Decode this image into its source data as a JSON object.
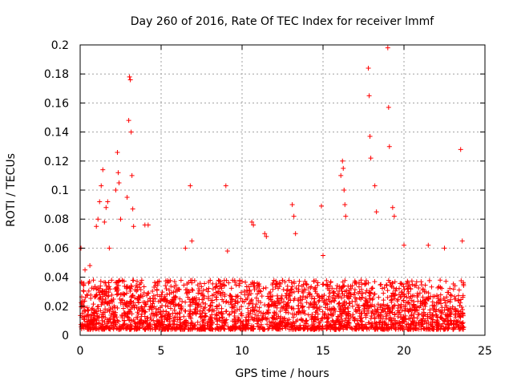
{
  "chart_data": {
    "type": "scatter",
    "title": "Day 260 of 2016, Rate Of TEC Index for receiver lmmf",
    "xlabel": "GPS time / hours",
    "ylabel": "ROTI / TECUs",
    "xlim": [
      0,
      25
    ],
    "ylim": [
      0,
      0.2
    ],
    "xticks": [
      "0",
      "5",
      "10",
      "15",
      "20",
      "25"
    ],
    "yticks": [
      "0",
      "0.02",
      "0.04",
      "0.06",
      "0.08",
      "0.1",
      "0.12",
      "0.14",
      "0.16",
      "0.18",
      "0.2"
    ],
    "grid": true,
    "marker": "+",
    "color": "#ff0000",
    "series": [
      {
        "name": "ROTI",
        "note": "dense band of points between ~0.005 and ~0.04 TECU across 0-23.7 h; notable outliers listed",
        "points": [
          [
            0.05,
            0.06
          ],
          [
            0.3,
            0.045
          ],
          [
            0.6,
            0.048
          ],
          [
            1.0,
            0.075
          ],
          [
            1.1,
            0.08
          ],
          [
            1.2,
            0.092
          ],
          [
            1.3,
            0.103
          ],
          [
            1.4,
            0.114
          ],
          [
            1.5,
            0.078
          ],
          [
            1.6,
            0.088
          ],
          [
            1.7,
            0.092
          ],
          [
            1.8,
            0.06
          ],
          [
            2.2,
            0.1
          ],
          [
            2.3,
            0.126
          ],
          [
            2.35,
            0.112
          ],
          [
            2.4,
            0.105
          ],
          [
            2.5,
            0.08
          ],
          [
            2.9,
            0.095
          ],
          [
            3.0,
            0.148
          ],
          [
            3.05,
            0.178
          ],
          [
            3.1,
            0.176
          ],
          [
            3.15,
            0.14
          ],
          [
            3.2,
            0.11
          ],
          [
            3.25,
            0.087
          ],
          [
            3.3,
            0.075
          ],
          [
            4.0,
            0.076
          ],
          [
            4.2,
            0.076
          ],
          [
            6.5,
            0.06
          ],
          [
            6.8,
            0.103
          ],
          [
            6.9,
            0.065
          ],
          [
            9.0,
            0.103
          ],
          [
            9.1,
            0.058
          ],
          [
            10.6,
            0.078
          ],
          [
            10.7,
            0.076
          ],
          [
            11.4,
            0.07
          ],
          [
            11.5,
            0.068
          ],
          [
            13.1,
            0.09
          ],
          [
            13.2,
            0.082
          ],
          [
            13.3,
            0.07
          ],
          [
            14.9,
            0.089
          ],
          [
            15.0,
            0.055
          ],
          [
            16.1,
            0.11
          ],
          [
            16.2,
            0.12
          ],
          [
            16.25,
            0.115
          ],
          [
            16.3,
            0.1
          ],
          [
            16.35,
            0.09
          ],
          [
            16.4,
            0.082
          ],
          [
            17.8,
            0.184
          ],
          [
            17.85,
            0.165
          ],
          [
            17.9,
            0.137
          ],
          [
            17.95,
            0.122
          ],
          [
            18.2,
            0.103
          ],
          [
            18.3,
            0.085
          ],
          [
            19.0,
            0.198
          ],
          [
            19.05,
            0.157
          ],
          [
            19.1,
            0.13
          ],
          [
            19.3,
            0.088
          ],
          [
            19.4,
            0.082
          ],
          [
            20.0,
            0.062
          ],
          [
            21.5,
            0.062
          ],
          [
            22.5,
            0.06
          ],
          [
            23.5,
            0.128
          ],
          [
            23.6,
            0.065
          ]
        ],
        "band": {
          "x": [
            0,
            23.7
          ],
          "y": [
            0.004,
            0.038
          ]
        }
      }
    ]
  }
}
